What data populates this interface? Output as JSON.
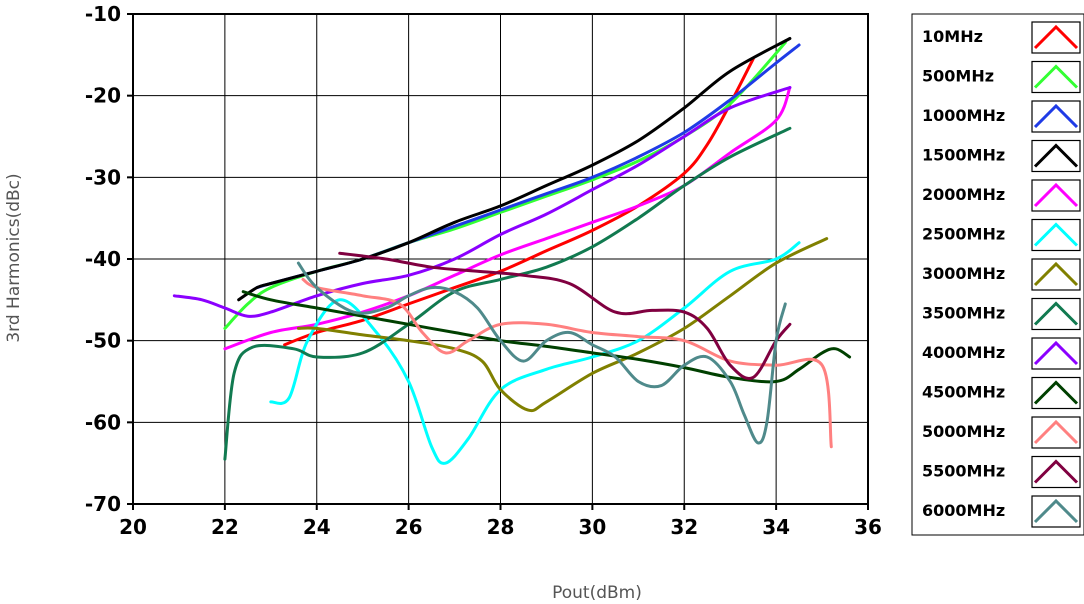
{
  "chart_data": {
    "type": "line",
    "title": "",
    "xlabel": "Pout(dBm)",
    "ylabel": "3rd Harmonics(dBc)",
    "xlim": [
      20,
      36
    ],
    "ylim": [
      -70,
      -10
    ],
    "xticks": [
      20,
      22,
      24,
      26,
      28,
      30,
      32,
      34,
      36
    ],
    "yticks": [
      -70,
      -60,
      -50,
      -40,
      -30,
      -20,
      -10
    ],
    "xtick_labels": [
      "20",
      "22",
      "24",
      "26",
      "28",
      "30",
      "32",
      "34",
      "36"
    ],
    "ytick_labels": [
      "-70",
      "-60",
      "-50",
      "-40",
      "-30",
      "-20",
      "-10"
    ],
    "grid": true,
    "legend_position": "right",
    "series": [
      {
        "name": "10MHz",
        "color": "#ff0000",
        "x": [
          23.3,
          24,
          25,
          26,
          27,
          28,
          29,
          30,
          31,
          32,
          32.5,
          33,
          33.5
        ],
        "y": [
          -50.5,
          -49,
          -47.5,
          -45.5,
          -43.5,
          -41.5,
          -39,
          -36.5,
          -33.5,
          -29.5,
          -26,
          -21,
          -15.5
        ]
      },
      {
        "name": "500MHz",
        "color": "#33ff33",
        "x": [
          22,
          22.5,
          23,
          24,
          25,
          26,
          27,
          28,
          29,
          30,
          31,
          32,
          33,
          34.2
        ],
        "y": [
          -48.5,
          -45.5,
          -43.5,
          -41.5,
          -40,
          -38,
          -36.3,
          -34.3,
          -32.3,
          -30.3,
          -28,
          -25,
          -21,
          -13.5
        ]
      },
      {
        "name": "1000MHz",
        "color": "#1f3be6",
        "x": [
          22.7,
          23,
          24,
          25,
          26,
          27,
          28,
          29,
          30,
          31,
          32,
          33,
          34,
          34.5
        ],
        "y": [
          -43.5,
          -43,
          -41.5,
          -40,
          -38,
          -36,
          -34,
          -32,
          -30,
          -27.5,
          -24.5,
          -20.5,
          -16,
          -13.8
        ]
      },
      {
        "name": "1500MHz",
        "color": "#000000",
        "x": [
          22.3,
          22.7,
          23,
          24,
          25,
          26,
          27,
          28,
          29,
          30,
          31,
          32,
          33,
          34.3
        ],
        "y": [
          -45,
          -43.5,
          -43,
          -41.5,
          -40,
          -38,
          -35.5,
          -33.5,
          -31,
          -28.5,
          -25.5,
          -21.5,
          -17,
          -13
        ]
      },
      {
        "name": "2000MHz",
        "color": "#ff00ff",
        "x": [
          22,
          23,
          24,
          25,
          26,
          27,
          28,
          29,
          30,
          31,
          32,
          33,
          34,
          34.3
        ],
        "y": [
          -51,
          -49,
          -48,
          -46.5,
          -44.5,
          -42,
          -39.5,
          -37.5,
          -35.5,
          -33.5,
          -31,
          -27,
          -23,
          -19
        ]
      },
      {
        "name": "2500MHz",
        "color": "#00ffff",
        "x": [
          23,
          23.4,
          23.8,
          24.5,
          25.3,
          26,
          26.5,
          26.8,
          27.3,
          28,
          29,
          30,
          31,
          32,
          33,
          34,
          34.5
        ],
        "y": [
          -57.5,
          -57,
          -50,
          -45,
          -49,
          -55,
          -63,
          -65,
          -62,
          -56,
          -53.5,
          -52,
          -50,
          -46,
          -41.5,
          -40,
          -38
        ]
      },
      {
        "name": "3000MHz",
        "color": "#808000",
        "x": [
          23.6,
          24,
          25,
          26,
          27,
          27.6,
          28,
          28.6,
          29,
          30,
          31,
          32,
          33,
          34,
          35.1
        ],
        "y": [
          -48.5,
          -48.5,
          -49.3,
          -50,
          -51,
          -52.5,
          -56,
          -58.5,
          -57.5,
          -54,
          -51.5,
          -48.5,
          -44.5,
          -40.5,
          -37.5
        ]
      },
      {
        "name": "3500MHz",
        "color": "#117a50",
        "x": [
          22,
          22.2,
          22.6,
          23.5,
          24,
          25,
          26,
          27,
          28,
          29,
          30,
          31,
          32,
          33,
          34.3
        ],
        "y": [
          -64.5,
          -54,
          -50.8,
          -51,
          -52,
          -51.5,
          -48,
          -44,
          -42.5,
          -41,
          -38.5,
          -35,
          -31,
          -27.5,
          -24
        ]
      },
      {
        "name": "4000MHz",
        "color": "#8b00ff",
        "x": [
          20.9,
          21.5,
          22,
          22.5,
          23,
          24,
          25,
          26,
          27,
          28,
          29,
          30,
          31,
          32,
          33,
          34.3
        ],
        "y": [
          -44.5,
          -45,
          -46,
          -47,
          -46.5,
          -44.5,
          -43,
          -42,
          -40,
          -37,
          -34.5,
          -31.5,
          -28.5,
          -25,
          -21.5,
          -19
        ]
      },
      {
        "name": "4500MHz",
        "color": "#004000",
        "x": [
          22.4,
          23,
          24,
          25,
          26,
          27,
          28,
          29,
          30,
          31,
          32,
          33,
          34,
          34.5,
          35,
          35.3,
          35.6
        ],
        "y": [
          -44,
          -45,
          -46,
          -47,
          -48,
          -49,
          -50,
          -50.7,
          -51.5,
          -52.3,
          -53.3,
          -54.5,
          -55,
          -53.5,
          -51.5,
          -51,
          -52
        ]
      },
      {
        "name": "5000MHz",
        "color": "#ff8080",
        "x": [
          23.7,
          24,
          25,
          25.8,
          26.3,
          26.8,
          27.3,
          28,
          29,
          30,
          31,
          32,
          33,
          34,
          35,
          35.2
        ],
        "y": [
          -42.5,
          -43.5,
          -44.5,
          -45.5,
          -49,
          -51.5,
          -50,
          -48,
          -48,
          -49,
          -49.5,
          -50,
          -52.5,
          -53,
          -53,
          -63
        ]
      },
      {
        "name": "5500MHz",
        "color": "#800040",
        "x": [
          24.5,
          25.5,
          26.5,
          27.5,
          28.5,
          29.5,
          30.5,
          31.3,
          32,
          32.5,
          33,
          33.5,
          34,
          34.3
        ],
        "y": [
          -39.3,
          -40,
          -41,
          -41.5,
          -42,
          -43,
          -46.5,
          -46.3,
          -46.5,
          -48.5,
          -53,
          -54.5,
          -50,
          -48
        ]
      },
      {
        "name": "6000MHz",
        "color": "#4f8a8b",
        "x": [
          23.6,
          24,
          24.8,
          25.5,
          26,
          26.5,
          27,
          27.5,
          28,
          28.5,
          29,
          29.5,
          30,
          30.5,
          31,
          31.5,
          32,
          32.5,
          33,
          33.3,
          33.6,
          33.8,
          34,
          34.2
        ],
        "y": [
          -40.5,
          -43.5,
          -46.5,
          -46,
          -44.5,
          -43.5,
          -44,
          -46,
          -50,
          -52.5,
          -50,
          -49,
          -50.5,
          -52,
          -55,
          -55.5,
          -53,
          -52,
          -55,
          -59,
          -62.5,
          -60,
          -50,
          -45.5
        ]
      }
    ]
  }
}
